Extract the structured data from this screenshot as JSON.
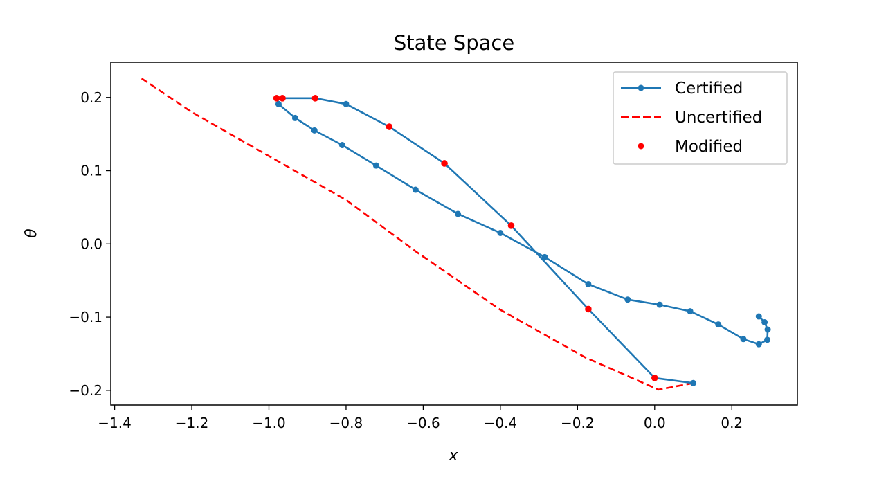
{
  "chart_data": {
    "type": "line",
    "title": "State Space",
    "xlabel": "x",
    "ylabel": "θ",
    "xlim": [
      -1.41,
      0.37
    ],
    "ylim": [
      -0.22,
      0.248
    ],
    "xticks": [
      -1.4,
      -1.2,
      -1.0,
      -0.8,
      -0.6,
      -0.4,
      -0.2,
      0.0,
      0.2
    ],
    "xtick_labels": [
      "−1.4",
      "−1.2",
      "−1.0",
      "−0.8",
      "−0.6",
      "−0.4",
      "−0.2",
      "0.0",
      "0.2"
    ],
    "yticks": [
      -0.2,
      -0.1,
      0.0,
      0.1,
      0.2
    ],
    "ytick_labels": [
      "−0.2",
      "−0.1",
      "0.0",
      "0.1",
      "0.2"
    ],
    "grid": false,
    "legend_position": "top-right",
    "colors": {
      "certified": "#1f77b4",
      "uncertified": "#ff0000",
      "modified": "#ff0000"
    },
    "series": [
      {
        "name": "Certified",
        "style": "solid-with-markers",
        "points": [
          [
            0.1,
            -0.19
          ],
          [
            0.0,
            -0.183
          ],
          [
            -0.172,
            -0.089
          ],
          [
            -0.372,
            0.025
          ],
          [
            -0.545,
            0.11
          ],
          [
            -0.688,
            0.16
          ],
          [
            -0.8,
            0.191
          ],
          [
            -0.88,
            0.199
          ],
          [
            -0.965,
            0.199
          ],
          [
            -0.98,
            0.199
          ],
          [
            -0.975,
            0.191
          ],
          [
            -0.932,
            0.172
          ],
          [
            -0.882,
            0.155
          ],
          [
            -0.81,
            0.135
          ],
          [
            -0.722,
            0.107
          ],
          [
            -0.62,
            0.074
          ],
          [
            -0.51,
            0.041
          ],
          [
            -0.4,
            0.015
          ],
          [
            -0.285,
            -0.018
          ],
          [
            -0.172,
            -0.055
          ],
          [
            -0.07,
            -0.076
          ],
          [
            0.013,
            -0.083
          ],
          [
            0.092,
            -0.092
          ],
          [
            0.165,
            -0.11
          ],
          [
            0.23,
            -0.13
          ],
          [
            0.27,
            -0.137
          ],
          [
            0.292,
            -0.131
          ],
          [
            0.293,
            -0.117
          ],
          [
            0.285,
            -0.107
          ],
          [
            0.27,
            -0.099
          ]
        ]
      },
      {
        "name": "Uncertified",
        "style": "dashed",
        "points": [
          [
            0.1,
            -0.19
          ],
          [
            0.01,
            -0.199
          ],
          [
            -0.18,
            -0.155
          ],
          [
            -0.4,
            -0.09
          ],
          [
            -0.62,
            -0.01
          ],
          [
            -0.8,
            0.06
          ],
          [
            -1.0,
            0.12
          ],
          [
            -1.2,
            0.18
          ],
          [
            -1.33,
            0.226
          ]
        ]
      },
      {
        "name": "Modified",
        "style": "markers-only",
        "points": [
          [
            -0.98,
            0.199
          ],
          [
            -0.965,
            0.199
          ],
          [
            -0.88,
            0.199
          ],
          [
            -0.688,
            0.16
          ],
          [
            -0.545,
            0.11
          ],
          [
            -0.372,
            0.025
          ],
          [
            -0.172,
            -0.089
          ],
          [
            0.0,
            -0.183
          ]
        ]
      }
    ],
    "legend": [
      "Certified",
      "Uncertified",
      "Modified"
    ]
  }
}
